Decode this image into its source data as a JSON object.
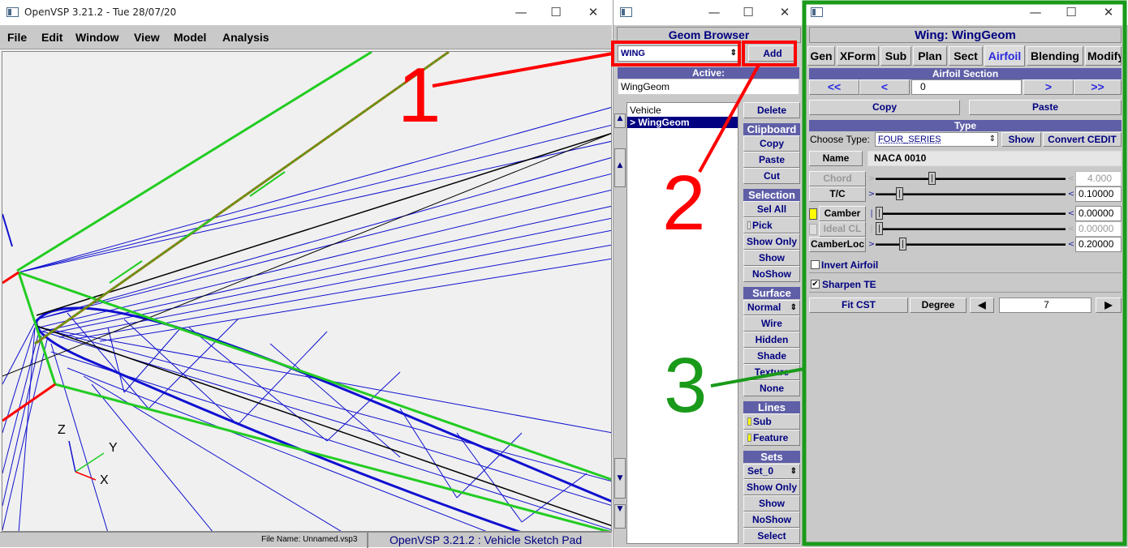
{
  "main_window": {
    "title": "OpenVSP 3.21.2 - Tue 28/07/20",
    "menu": [
      "File",
      "Edit",
      "Window",
      "View",
      "Model",
      "Analysis"
    ],
    "status_file": "File Name: Unnamed.vsp3",
    "status_app": "OpenVSP 3.21.2 : Vehicle Sketch Pad",
    "axis_labels": {
      "z": "Z",
      "y": "Y",
      "x": "X"
    }
  },
  "geom_browser": {
    "title": "Geom Browser",
    "type_select": "WING",
    "add_button": "Add",
    "active_header": "Active:",
    "active_value": "WingGeom",
    "tree": [
      "Vehicle",
      "> WingGeom"
    ],
    "delete": "Delete",
    "clipboard": {
      "header": "Clipboard",
      "items": [
        "Copy",
        "Paste",
        "Cut"
      ]
    },
    "selection": {
      "header": "Selection",
      "items": [
        "Sel All",
        "Pick",
        "Show Only",
        "Show",
        "NoShow"
      ]
    },
    "surface": {
      "header": "Surface",
      "select": "Normal",
      "items": [
        "Wire",
        "Hidden",
        "Shade",
        "Texture",
        "None"
      ]
    },
    "lines": {
      "header": "Lines",
      "items": [
        "Sub",
        "Feature"
      ]
    },
    "sets": {
      "header": "Sets",
      "select": "Set_0",
      "items": [
        "Show Only",
        "Show",
        "NoShow",
        "Select"
      ]
    }
  },
  "wing_panel": {
    "title": "Wing: WingGeom",
    "tabs": [
      "Gen",
      "XForm",
      "Sub",
      "Plan",
      "Sect",
      "Airfoil",
      "Blending",
      "Modify"
    ],
    "active_tab": "Airfoil",
    "airfoil_section_header": "Airfoil Section",
    "nav": {
      "first": "<<",
      "prev": "<",
      "next": ">",
      "last": ">>"
    },
    "section_index": "0",
    "copy": "Copy",
    "paste": "Paste",
    "type_header": "Type",
    "choose_type_label": "Choose Type:",
    "choose_type_value": "FOUR_SERIES",
    "show_button": "Show",
    "convert_button": "Convert CEDIT",
    "name_label": "Name",
    "name_value": "NACA 0010",
    "params": [
      {
        "label": "Chord",
        "value": "4.000",
        "fraction": 0.3,
        "enabled": false
      },
      {
        "label": "T/C",
        "value": "0.10000",
        "fraction": 0.12,
        "enabled": true
      },
      {
        "label": "Camber",
        "value": "0.00000",
        "fraction": 0.0,
        "enabled": true
      },
      {
        "label": "Ideal CL",
        "value": "0.00000",
        "fraction": 0.0,
        "enabled": false
      },
      {
        "label": "CamberLoc",
        "value": "0.20000",
        "fraction": 0.13,
        "enabled": true
      }
    ],
    "invert_airfoil": "Invert Airfoil",
    "sharpen_te": "Sharpen TE",
    "fit_cst": "Fit CST",
    "degree_label": "Degree",
    "degree_value": "7"
  },
  "annotations": {
    "n1": "1",
    "n2": "2",
    "n3": "3",
    "red": "#ff0000",
    "green": "#1a9a1a"
  }
}
